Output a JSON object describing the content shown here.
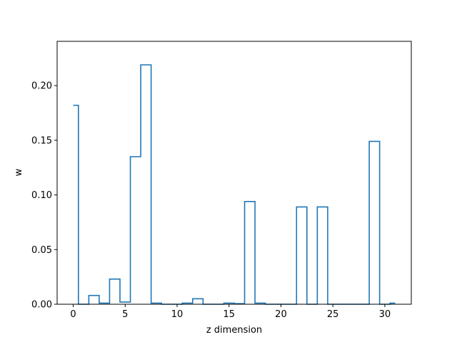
{
  "chart_data": {
    "type": "step",
    "title": "",
    "xlabel": "z dimension",
    "ylabel": "w",
    "xlim": [
      -1.55,
      32.55
    ],
    "ylim": [
      0,
      0.2405
    ],
    "xticks": [
      0,
      5,
      10,
      15,
      20,
      25,
      30
    ],
    "xtick_labels": [
      "0",
      "5",
      "10",
      "15",
      "20",
      "25",
      "30"
    ],
    "yticks": [
      0.0,
      0.05,
      0.1,
      0.15,
      0.2
    ],
    "ytick_labels": [
      "0.00",
      "0.05",
      "0.10",
      "0.15",
      "0.20"
    ],
    "step_where": "mid",
    "grid": false,
    "series": [
      {
        "color": "#1f77b4",
        "x": [
          0,
          1,
          2,
          3,
          4,
          5,
          6,
          7,
          8,
          9,
          10,
          11,
          12,
          13,
          14,
          15,
          16,
          17,
          18,
          19,
          20,
          21,
          22,
          23,
          24,
          25,
          26,
          27,
          28,
          29,
          30,
          31
        ],
        "y": [
          0.182,
          0.0,
          0.008,
          0.001,
          0.023,
          0.002,
          0.135,
          0.219,
          0.001,
          0.0,
          0.0,
          0.001,
          0.005,
          0.0,
          0.0,
          0.001,
          0.0005,
          0.094,
          0.001,
          0.0,
          0.0,
          0.0,
          0.089,
          0.0,
          0.089,
          0.0,
          0.0,
          0.0,
          0.0,
          0.149,
          0.0,
          0.001
        ]
      }
    ]
  }
}
